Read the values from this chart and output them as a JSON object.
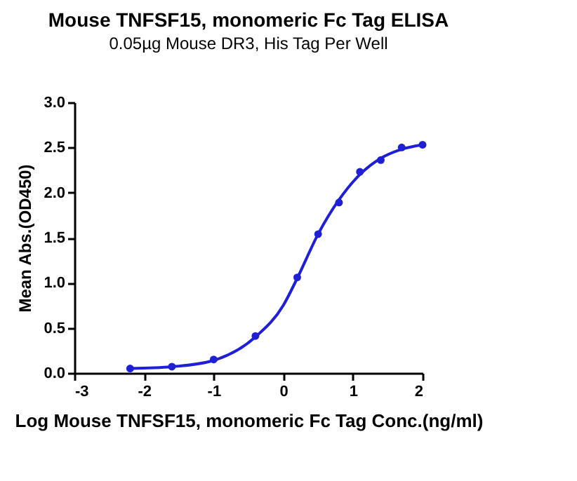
{
  "chart_data": {
    "type": "scatter",
    "title": "Mouse TNFSF15, monomeric Fc Tag ELISA",
    "subtitle": "0.05µg Mouse DR3, His Tag Per Well",
    "xlabel": "Log Mouse TNFSF15, monomeric Fc Tag Conc.(ng/ml)",
    "ylabel": "Mean Abs.(OD450)",
    "x": [
      -2.2,
      -1.6,
      -1.0,
      -0.4,
      0.2,
      0.5,
      0.8,
      1.1,
      1.4,
      1.7,
      2.0
    ],
    "series": [
      {
        "color": "#1f1fd6",
        "values": [
          0.05,
          0.07,
          0.15,
          0.41,
          1.06,
          1.54,
          1.89,
          2.23,
          2.36,
          2.5,
          2.53
        ],
        "marker": "circle"
      },
      {
        "type": "line",
        "color": "#1f1fd6",
        "x": [
          -2.2,
          -1.6,
          -1.0,
          -0.4,
          0.0,
          0.2,
          0.5,
          0.8,
          1.1,
          1.4,
          1.7,
          2.0
        ],
        "values": [
          0.05,
          0.07,
          0.14,
          0.4,
          0.75,
          1.05,
          1.54,
          1.92,
          2.2,
          2.38,
          2.48,
          2.53
        ],
        "line_style": "solid",
        "marker": "none"
      }
    ],
    "xlim": [
      -3,
      2
    ],
    "xticks": [
      -3,
      -2,
      -1,
      0,
      1,
      2
    ],
    "ylim": [
      0,
      3.0
    ],
    "yticks": [
      {
        "value": 0,
        "label": "0.0"
      },
      {
        "value": 0.5,
        "label": "0.5"
      },
      {
        "value": 1,
        "label": "1.0"
      },
      {
        "value": 1.5,
        "label": "1.5"
      },
      {
        "value": 2,
        "label": "2.0"
      },
      {
        "value": 2.5,
        "label": "2.5"
      },
      {
        "value": 3,
        "label": "3.0"
      }
    ],
    "grid": false,
    "legend": false
  }
}
